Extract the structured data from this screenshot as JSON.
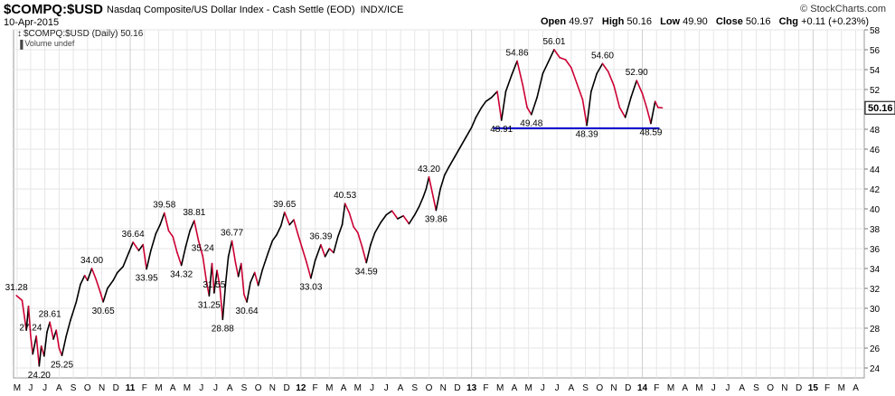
{
  "header": {
    "symbol": "$COMPQ:$USD",
    "name": "Nasdaq Composite/US Dollar Index - Cash Settle (EOD)",
    "exchange": "INDX/ICE",
    "date": "10-Apr-2015",
    "brand": "© StockCharts.com",
    "open_label": "Open",
    "open": "49.97",
    "high_label": "High",
    "high": "50.16",
    "low_label": "Low",
    "low": "49.90",
    "close_label": "Close",
    "close": "50.16",
    "chg_label": "Chg",
    "chg": "+0.11 (+0.23%)"
  },
  "legend": {
    "price": "$COMPQ:$USD (Daily) 50.16",
    "volume": "Volume undef"
  },
  "colors": {
    "up": "#000000",
    "down": "#cc0033",
    "support": "#0000cc",
    "grid": "#e6e6e6"
  },
  "chart_data": {
    "type": "line",
    "title": "$COMPQ:$USD (Daily)",
    "xlabel": "",
    "ylabel": "",
    "ylim": [
      23,
      58
    ],
    "y_ticks": [
      24,
      26,
      28,
      30,
      32,
      34,
      36,
      38,
      40,
      42,
      44,
      46,
      48,
      50,
      52,
      54,
      56,
      58
    ],
    "x_labels": [
      {
        "t": 0.05,
        "label": "M"
      },
      {
        "t": 1,
        "label": "J"
      },
      {
        "t": 2,
        "label": "J"
      },
      {
        "t": 3,
        "label": "A"
      },
      {
        "t": 4,
        "label": "S"
      },
      {
        "t": 5,
        "label": "O"
      },
      {
        "t": 6,
        "label": "N"
      },
      {
        "t": 7,
        "label": "D"
      },
      {
        "t": 8,
        "label": "11",
        "year": true
      },
      {
        "t": 9,
        "label": "F"
      },
      {
        "t": 10,
        "label": "M"
      },
      {
        "t": 11,
        "label": "A"
      },
      {
        "t": 12,
        "label": "M"
      },
      {
        "t": 13,
        "label": "J"
      },
      {
        "t": 14,
        "label": "J"
      },
      {
        "t": 15,
        "label": "A"
      },
      {
        "t": 16,
        "label": "S"
      },
      {
        "t": 17,
        "label": "O"
      },
      {
        "t": 18,
        "label": "N"
      },
      {
        "t": 19,
        "label": "D"
      },
      {
        "t": 20,
        "label": "12",
        "year": true
      },
      {
        "t": 21,
        "label": "F"
      },
      {
        "t": 22,
        "label": "M"
      },
      {
        "t": 23,
        "label": "A"
      },
      {
        "t": 24,
        "label": "M"
      },
      {
        "t": 25,
        "label": "J"
      },
      {
        "t": 26,
        "label": "J"
      },
      {
        "t": 27,
        "label": "A"
      },
      {
        "t": 28,
        "label": "S"
      },
      {
        "t": 29,
        "label": "O"
      },
      {
        "t": 30,
        "label": "N"
      },
      {
        "t": 31,
        "label": "D"
      },
      {
        "t": 32,
        "label": "13",
        "year": true
      },
      {
        "t": 33,
        "label": "F"
      },
      {
        "t": 34,
        "label": "M"
      },
      {
        "t": 35,
        "label": "A"
      },
      {
        "t": 36,
        "label": "M"
      },
      {
        "t": 37,
        "label": "J"
      },
      {
        "t": 38,
        "label": "J"
      },
      {
        "t": 39,
        "label": "A"
      },
      {
        "t": 40,
        "label": "S"
      },
      {
        "t": 41,
        "label": "O"
      },
      {
        "t": 42,
        "label": "N"
      },
      {
        "t": 43,
        "label": "D"
      },
      {
        "t": 44,
        "label": "14",
        "year": true
      },
      {
        "t": 45,
        "label": "F"
      },
      {
        "t": 46,
        "label": "M"
      },
      {
        "t": 47,
        "label": "A"
      },
      {
        "t": 48,
        "label": "M"
      },
      {
        "t": 49,
        "label": "J"
      },
      {
        "t": 50,
        "label": "J"
      },
      {
        "t": 51,
        "label": "A"
      },
      {
        "t": 52,
        "label": "S"
      },
      {
        "t": 53,
        "label": "O"
      },
      {
        "t": 54,
        "label": "N"
      },
      {
        "t": 55,
        "label": "D"
      },
      {
        "t": 56,
        "label": "15",
        "year": true
      },
      {
        "t": 57,
        "label": "F"
      },
      {
        "t": 58,
        "label": "M"
      },
      {
        "t": 59,
        "label": "A"
      }
    ],
    "series": [
      {
        "name": "$COMPQ:$USD",
        "points": [
          [
            0,
            31.28
          ],
          [
            0.4,
            30.8
          ],
          [
            0.7,
            27.8
          ],
          [
            0.85,
            30.2
          ],
          [
            1.0,
            27.24
          ],
          [
            1.15,
            25.4
          ],
          [
            1.4,
            27.2
          ],
          [
            1.6,
            24.2
          ],
          [
            1.75,
            26.2
          ],
          [
            1.95,
            25.2
          ],
          [
            2.15,
            27.6
          ],
          [
            2.35,
            28.61
          ],
          [
            2.6,
            26.9
          ],
          [
            2.8,
            27.8
          ],
          [
            3.0,
            26.0
          ],
          [
            3.2,
            25.25
          ],
          [
            3.5,
            27.2
          ],
          [
            3.8,
            28.8
          ],
          [
            4.2,
            30.6
          ],
          [
            4.5,
            32.4
          ],
          [
            4.8,
            33.3
          ],
          [
            5.0,
            32.8
          ],
          [
            5.3,
            34.0
          ],
          [
            5.6,
            32.9
          ],
          [
            5.9,
            31.6
          ],
          [
            6.1,
            30.65
          ],
          [
            6.4,
            32.0
          ],
          [
            6.8,
            32.8
          ],
          [
            7.1,
            33.6
          ],
          [
            7.5,
            34.2
          ],
          [
            7.9,
            35.6
          ],
          [
            8.2,
            36.64
          ],
          [
            8.6,
            35.8
          ],
          [
            8.9,
            36.4
          ],
          [
            9.15,
            33.95
          ],
          [
            9.45,
            35.8
          ],
          [
            9.8,
            37.5
          ],
          [
            10.1,
            38.4
          ],
          [
            10.4,
            39.58
          ],
          [
            10.7,
            37.8
          ],
          [
            11.0,
            37.2
          ],
          [
            11.3,
            35.6
          ],
          [
            11.6,
            34.32
          ],
          [
            11.9,
            36.2
          ],
          [
            12.2,
            37.8
          ],
          [
            12.5,
            38.81
          ],
          [
            12.8,
            36.8
          ],
          [
            13.1,
            35.24
          ],
          [
            13.35,
            32.8
          ],
          [
            13.55,
            31.25
          ],
          [
            13.75,
            34.5
          ],
          [
            13.9,
            31.55
          ],
          [
            14.1,
            33.8
          ],
          [
            14.3,
            32.2
          ],
          [
            14.5,
            28.88
          ],
          [
            14.7,
            32.4
          ],
          [
            14.9,
            35.2
          ],
          [
            15.15,
            36.77
          ],
          [
            15.4,
            34.6
          ],
          [
            15.6,
            33.2
          ],
          [
            15.8,
            34.5
          ],
          [
            16.0,
            31.4
          ],
          [
            16.2,
            30.64
          ],
          [
            16.45,
            32.6
          ],
          [
            16.75,
            33.6
          ],
          [
            17.0,
            32.3
          ],
          [
            17.3,
            33.9
          ],
          [
            17.7,
            35.6
          ],
          [
            18.0,
            36.8
          ],
          [
            18.3,
            37.4
          ],
          [
            18.6,
            38.3
          ],
          [
            18.85,
            39.65
          ],
          [
            19.2,
            38.4
          ],
          [
            19.5,
            38.9
          ],
          [
            19.8,
            37.4
          ],
          [
            20.1,
            36.0
          ],
          [
            20.4,
            34.6
          ],
          [
            20.7,
            33.03
          ],
          [
            21.0,
            34.8
          ],
          [
            21.4,
            36.39
          ],
          [
            21.7,
            35.2
          ],
          [
            22.0,
            36.0
          ],
          [
            22.3,
            35.6
          ],
          [
            22.6,
            37.2
          ],
          [
            22.9,
            38.4
          ],
          [
            23.1,
            40.53
          ],
          [
            23.4,
            39.6
          ],
          [
            23.7,
            38.2
          ],
          [
            24.0,
            37.6
          ],
          [
            24.3,
            36.2
          ],
          [
            24.6,
            34.59
          ],
          [
            24.9,
            36.4
          ],
          [
            25.2,
            37.6
          ],
          [
            25.6,
            38.6
          ],
          [
            26.0,
            39.4
          ],
          [
            26.4,
            39.8
          ],
          [
            26.8,
            39.0
          ],
          [
            27.2,
            39.3
          ],
          [
            27.6,
            38.5
          ],
          [
            28.0,
            39.4
          ],
          [
            28.3,
            40.2
          ],
          [
            28.6,
            41.2
          ],
          [
            28.8,
            42.0
          ],
          [
            29.0,
            43.2
          ],
          [
            29.3,
            41.2
          ],
          [
            29.5,
            39.86
          ],
          [
            29.8,
            42.0
          ],
          [
            30.1,
            43.4
          ],
          [
            30.4,
            44.2
          ],
          [
            30.8,
            45.2
          ],
          [
            31.2,
            46.2
          ],
          [
            31.6,
            47.2
          ],
          [
            32.0,
            48.2
          ],
          [
            32.3,
            49.2
          ],
          [
            32.7,
            50.2
          ],
          [
            33.0,
            50.8
          ],
          [
            33.4,
            51.2
          ],
          [
            33.8,
            51.8
          ],
          [
            34.1,
            48.91
          ],
          [
            34.4,
            51.8
          ],
          [
            34.8,
            53.4
          ],
          [
            35.2,
            54.86
          ],
          [
            35.6,
            52.4
          ],
          [
            35.9,
            50.2
          ],
          [
            36.2,
            49.48
          ],
          [
            36.6,
            51.2
          ],
          [
            37.0,
            53.6
          ],
          [
            37.4,
            54.8
          ],
          [
            37.8,
            56.01
          ],
          [
            38.2,
            55.2
          ],
          [
            38.6,
            55.0
          ],
          [
            39.0,
            54.2
          ],
          [
            39.4,
            52.6
          ],
          [
            39.8,
            51.0
          ],
          [
            40.1,
            48.39
          ],
          [
            40.4,
            51.8
          ],
          [
            40.8,
            53.6
          ],
          [
            41.2,
            54.6
          ],
          [
            41.6,
            53.8
          ],
          [
            42.0,
            52.4
          ],
          [
            42.4,
            50.2
          ],
          [
            42.8,
            49.2
          ],
          [
            43.2,
            51.2
          ],
          [
            43.6,
            52.9
          ],
          [
            44.0,
            51.6
          ],
          [
            44.3,
            50.2
          ],
          [
            44.6,
            48.59
          ],
          [
            44.9,
            50.8
          ],
          [
            45.1,
            50.2
          ],
          [
            45.4,
            50.16
          ]
        ]
      }
    ],
    "support_line": {
      "from_t": 33.5,
      "to_t": 45.2,
      "y": 48.1
    },
    "annotations": [
      {
        "t": 0,
        "y": 31.28,
        "text": "31.28",
        "pos": "above"
      },
      {
        "t": 1.6,
        "y": 24.2,
        "text": "24.20",
        "pos": "below"
      },
      {
        "t": 1.0,
        "y": 27.24,
        "text": "27.24",
        "pos": "above"
      },
      {
        "t": 2.35,
        "y": 28.61,
        "text": "28.61",
        "pos": "above"
      },
      {
        "t": 3.2,
        "y": 25.25,
        "text": "25.25",
        "pos": "below"
      },
      {
        "t": 5.3,
        "y": 34.0,
        "text": "34.00",
        "pos": "above"
      },
      {
        "t": 6.1,
        "y": 30.65,
        "text": "30.65",
        "pos": "below"
      },
      {
        "t": 8.2,
        "y": 36.64,
        "text": "36.64",
        "pos": "above"
      },
      {
        "t": 9.15,
        "y": 33.95,
        "text": "33.95",
        "pos": "below"
      },
      {
        "t": 10.4,
        "y": 39.58,
        "text": "39.58",
        "pos": "above"
      },
      {
        "t": 11.6,
        "y": 34.32,
        "text": "34.32",
        "pos": "below"
      },
      {
        "t": 12.5,
        "y": 38.81,
        "text": "38.81",
        "pos": "above"
      },
      {
        "t": 13.1,
        "y": 35.24,
        "text": "35.24",
        "pos": "above"
      },
      {
        "t": 13.55,
        "y": 31.25,
        "text": "31.25",
        "pos": "below"
      },
      {
        "t": 13.9,
        "y": 31.55,
        "text": "31.55",
        "pos": "above"
      },
      {
        "t": 14.5,
        "y": 28.88,
        "text": "28.88",
        "pos": "below"
      },
      {
        "t": 15.15,
        "y": 36.77,
        "text": "36.77",
        "pos": "above"
      },
      {
        "t": 16.2,
        "y": 30.64,
        "text": "30.64",
        "pos": "below"
      },
      {
        "t": 18.85,
        "y": 39.65,
        "text": "39.65",
        "pos": "above"
      },
      {
        "t": 20.7,
        "y": 33.03,
        "text": "33.03",
        "pos": "below"
      },
      {
        "t": 21.4,
        "y": 36.39,
        "text": "36.39",
        "pos": "above"
      },
      {
        "t": 23.1,
        "y": 40.53,
        "text": "40.53",
        "pos": "above"
      },
      {
        "t": 24.6,
        "y": 34.59,
        "text": "34.59",
        "pos": "below"
      },
      {
        "t": 29.0,
        "y": 43.2,
        "text": "43.20",
        "pos": "above"
      },
      {
        "t": 29.5,
        "y": 39.86,
        "text": "39.86",
        "pos": "below"
      },
      {
        "t": 35.2,
        "y": 54.86,
        "text": "54.86",
        "pos": "above"
      },
      {
        "t": 34.1,
        "y": 48.91,
        "text": "48.91",
        "pos": "below"
      },
      {
        "t": 36.2,
        "y": 49.48,
        "text": "49.48",
        "pos": "below"
      },
      {
        "t": 37.8,
        "y": 56.01,
        "text": "56.01",
        "pos": "above"
      },
      {
        "t": 40.1,
        "y": 48.39,
        "text": "48.39",
        "pos": "below"
      },
      {
        "t": 41.2,
        "y": 54.6,
        "text": "54.60",
        "pos": "above"
      },
      {
        "t": 43.6,
        "y": 52.9,
        "text": "52.90",
        "pos": "above"
      },
      {
        "t": 44.6,
        "y": 48.59,
        "text": "48.59",
        "pos": "below"
      }
    ],
    "last_value": "50.16"
  }
}
